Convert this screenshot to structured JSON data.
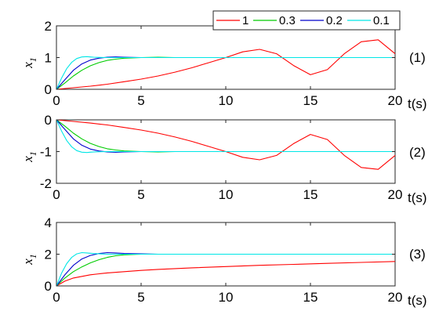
{
  "legend": {
    "entries": [
      "1",
      "0.3",
      "0.2",
      "0.1"
    ],
    "placement": "top-right"
  },
  "colors": {
    "1": "#ff0000",
    "0.3": "#00cc00",
    "0.2": "#0000cc",
    "0.1": "#00e6e6"
  },
  "chart_data": [
    {
      "type": "line",
      "panel_label": "(1)",
      "xlabel": "t(s)",
      "ylabel_base": "x",
      "ylabel_sub": "1",
      "xlim": [
        0,
        20
      ],
      "ylim": [
        0,
        2
      ],
      "xticks": [
        "0",
        "5",
        "10",
        "15",
        "20"
      ],
      "yticks": [
        "0",
        "1",
        "2"
      ],
      "series": [
        {
          "name": "1",
          "x": [
            0,
            1,
            2,
            3,
            4,
            5,
            6,
            7,
            8,
            9,
            10,
            11,
            12,
            13,
            14,
            15,
            16,
            17,
            18,
            19,
            20
          ],
          "y": [
            0,
            0.05,
            0.1,
            0.16,
            0.24,
            0.32,
            0.42,
            0.54,
            0.68,
            0.84,
            1.0,
            1.18,
            1.26,
            1.12,
            0.75,
            0.46,
            0.62,
            1.12,
            1.5,
            1.56,
            1.12
          ]
        },
        {
          "name": "0.3",
          "x": [
            0,
            0.5,
            1,
            1.5,
            2,
            2.5,
            3,
            3.5,
            4,
            5,
            6,
            7,
            8,
            10,
            20
          ],
          "y": [
            0,
            0.2,
            0.42,
            0.6,
            0.74,
            0.84,
            0.91,
            0.95,
            0.98,
            1.0,
            1.01,
            1.0,
            1.0,
            1.0,
            1.0
          ]
        },
        {
          "name": "0.2",
          "x": [
            0,
            0.5,
            1,
            1.5,
            2,
            2.5,
            3,
            3.5,
            4,
            5,
            6,
            8,
            10,
            20
          ],
          "y": [
            0,
            0.3,
            0.6,
            0.8,
            0.92,
            0.98,
            1.01,
            1.02,
            1.01,
            1.0,
            1.0,
            1.0,
            1.0,
            1.0
          ]
        },
        {
          "name": "0.1",
          "x": [
            0,
            0.3,
            0.6,
            0.9,
            1.2,
            1.5,
            1.8,
            2.2,
            3,
            4,
            6,
            10,
            20
          ],
          "y": [
            0,
            0.35,
            0.65,
            0.85,
            0.97,
            1.02,
            1.03,
            1.01,
            1.0,
            1.0,
            1.0,
            1.0,
            1.0
          ]
        }
      ]
    },
    {
      "type": "line",
      "panel_label": "(2)",
      "xlabel": "t(s)",
      "ylabel_base": "x",
      "ylabel_sub": "1",
      "xlim": [
        0,
        20
      ],
      "ylim": [
        -2,
        0
      ],
      "xticks": [
        "0",
        "5",
        "10",
        "15",
        "20"
      ],
      "yticks": [
        "0",
        "-1",
        "-2"
      ],
      "series": [
        {
          "name": "1",
          "x": [
            0,
            1,
            2,
            3,
            4,
            5,
            6,
            7,
            8,
            9,
            10,
            11,
            12,
            13,
            14,
            15,
            16,
            17,
            18,
            19,
            20
          ],
          "y": [
            0,
            -0.05,
            -0.1,
            -0.16,
            -0.24,
            -0.32,
            -0.42,
            -0.54,
            -0.68,
            -0.84,
            -1.0,
            -1.18,
            -1.26,
            -1.12,
            -0.75,
            -0.46,
            -0.62,
            -1.12,
            -1.5,
            -1.56,
            -1.12
          ]
        },
        {
          "name": "0.3",
          "x": [
            0,
            0.5,
            1,
            1.5,
            2,
            2.5,
            3,
            3.5,
            4,
            5,
            6,
            7,
            8,
            10,
            20
          ],
          "y": [
            0,
            -0.2,
            -0.42,
            -0.6,
            -0.74,
            -0.84,
            -0.91,
            -0.95,
            -0.98,
            -1.0,
            -1.01,
            -1.0,
            -1.0,
            -1.0,
            -1.0
          ]
        },
        {
          "name": "0.2",
          "x": [
            0,
            0.5,
            1,
            1.5,
            2,
            2.5,
            3,
            3.5,
            4,
            5,
            6,
            8,
            10,
            20
          ],
          "y": [
            0,
            -0.3,
            -0.6,
            -0.8,
            -0.92,
            -0.98,
            -1.01,
            -1.02,
            -1.01,
            -1.0,
            -1.0,
            -1.0,
            -1.0,
            -1.0
          ]
        },
        {
          "name": "0.1",
          "x": [
            0,
            0.3,
            0.6,
            0.9,
            1.2,
            1.5,
            1.8,
            2.2,
            3,
            4,
            6,
            10,
            20
          ],
          "y": [
            0,
            -0.35,
            -0.65,
            -0.85,
            -0.97,
            -1.02,
            -1.03,
            -1.01,
            -1.0,
            -1.0,
            -1.0,
            -1.0,
            -1.0
          ]
        }
      ]
    },
    {
      "type": "line",
      "panel_label": "(3)",
      "xlabel": "t(s)",
      "ylabel_base": "x",
      "ylabel_sub": "1",
      "xlim": [
        0,
        20
      ],
      "ylim": [
        0,
        4
      ],
      "xticks": [
        "0",
        "5",
        "10",
        "15",
        "20"
      ],
      "yticks": [
        "0",
        "2",
        "4"
      ],
      "series": [
        {
          "name": "1",
          "x": [
            0,
            0.5,
            1,
            2,
            3,
            4,
            5,
            6,
            8,
            10,
            12,
            14,
            16,
            18,
            20
          ],
          "y": [
            0,
            0.3,
            0.5,
            0.7,
            0.82,
            0.9,
            0.98,
            1.04,
            1.14,
            1.22,
            1.3,
            1.36,
            1.42,
            1.48,
            1.54
          ]
        },
        {
          "name": "0.3",
          "x": [
            0,
            0.5,
            1,
            1.5,
            2,
            2.5,
            3,
            3.5,
            4,
            5,
            6,
            8,
            10,
            20
          ],
          "y": [
            0,
            0.5,
            0.9,
            1.2,
            1.45,
            1.65,
            1.8,
            1.9,
            1.96,
            2.0,
            2.0,
            2.0,
            2.0,
            2.0
          ]
        },
        {
          "name": "0.2",
          "x": [
            0,
            0.5,
            1,
            1.5,
            2,
            2.5,
            3,
            3.5,
            4,
            5,
            6,
            8,
            10,
            20
          ],
          "y": [
            0,
            0.7,
            1.3,
            1.7,
            1.92,
            2.04,
            2.1,
            2.08,
            2.05,
            2.02,
            2.0,
            2.0,
            2.0,
            2.0
          ]
        },
        {
          "name": "0.1",
          "x": [
            0,
            0.3,
            0.6,
            0.9,
            1.2,
            1.5,
            1.8,
            2.2,
            3,
            4,
            6,
            10,
            20
          ],
          "y": [
            0,
            0.8,
            1.4,
            1.8,
            2.02,
            2.1,
            2.08,
            2.04,
            2.0,
            2.0,
            2.0,
            2.0,
            2.0
          ]
        }
      ]
    }
  ]
}
